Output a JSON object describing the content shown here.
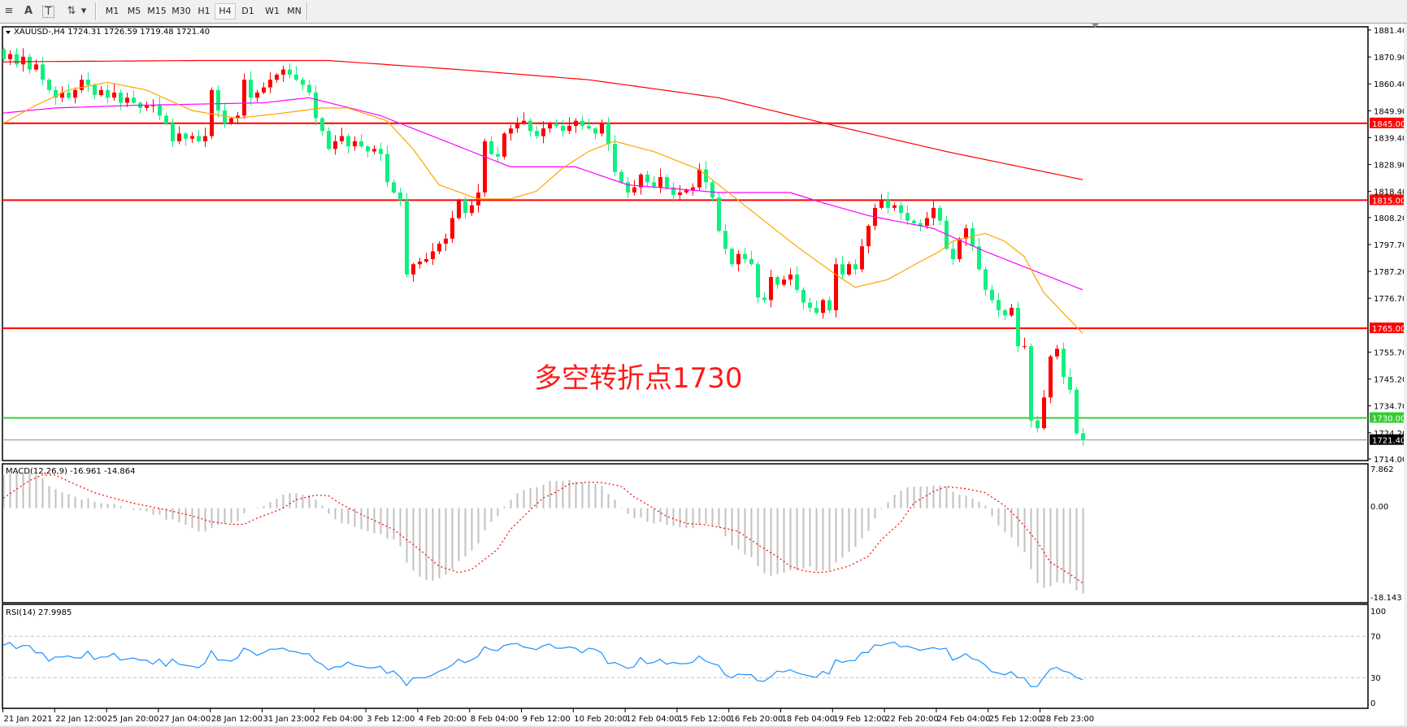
{
  "toolbar": {
    "tools": [
      {
        "name": "fibonacci-icon",
        "glyph": "≡"
      },
      {
        "name": "text-icon",
        "glyph": "A"
      },
      {
        "name": "text-label-icon",
        "glyph": "T"
      },
      {
        "name": "arrows-icon",
        "glyph": "⇅"
      },
      {
        "name": "dropdown-icon",
        "glyph": "▾"
      }
    ],
    "timeframes": [
      "M1",
      "M5",
      "M15",
      "M30",
      "H1",
      "H4",
      "D1",
      "W1",
      "MN"
    ],
    "active_timeframe": "H4"
  },
  "chart": {
    "header": "XAUUSD-,H4  1724.31 1726.59 1719.48 1721.40",
    "annotation": "多空转折点1730",
    "price_axis": [
      "1881.40",
      "1870.90",
      "1860.40",
      "1849.90",
      "1839.40",
      "1828.90",
      "1818.40",
      "1808.20",
      "1797.70",
      "1787.20",
      "1776.70",
      "1755.70",
      "1745.20",
      "1734.70",
      "1724.20",
      "1714.00"
    ],
    "time_axis": [
      "21 Jan 2021",
      "22 Jan 12:00",
      "25 Jan 20:00",
      "27 Jan 04:00",
      "28 Jan 12:00",
      "31 Jan 23:00",
      "2 Feb 04:00",
      "3 Feb 12:00",
      "4 Feb 20:00",
      "8 Feb 04:00",
      "9 Feb 12:00",
      "10 Feb 20:00",
      "12 Feb 04:00",
      "15 Feb 12:00",
      "16 Feb 20:00",
      "18 Feb 04:00",
      "19 Feb 12:00",
      "22 Feb 20:00",
      "24 Feb 04:00",
      "25 Feb 12:00",
      "28 Feb 23:00"
    ],
    "levels": [
      {
        "label": "1845.00",
        "value": 1845.0,
        "color": "#ff0000"
      },
      {
        "label": "1815.00",
        "value": 1815.0,
        "color": "#ff0000"
      },
      {
        "label": "1765.00",
        "value": 1765.0,
        "color": "#ff0000"
      },
      {
        "label": "1730.00",
        "value": 1730.0,
        "color": "#33cc33"
      },
      {
        "label": "1721.40",
        "value": 1721.4,
        "color": "#000000",
        "line_color": "#8090a0"
      }
    ],
    "colors": {
      "bull": "#ff0000",
      "bear": "#10f080",
      "ma_slow": "#ff0000",
      "ma_mid": "#ff00ff",
      "ma_fast": "#ffa500",
      "macd_hist": "#c0c0c0",
      "macd_signal": "#ff0000",
      "rsi": "#1e90ff"
    }
  },
  "chart_data": [
    {
      "type": "candlestick",
      "symbol": "XAUUSD-",
      "timeframe": "H4",
      "ylim": [
        1714.0,
        1881.4
      ],
      "first_open": 1874,
      "close": [
        1870,
        1872,
        1868,
        1871,
        1866,
        1868,
        1862,
        1858,
        1855,
        1857,
        1855,
        1858,
        1862,
        1860,
        1856,
        1858,
        1855,
        1857,
        1853,
        1855,
        1853,
        1851,
        1852,
        1852,
        1848,
        1845,
        1838,
        1841,
        1839,
        1840,
        1838,
        1840,
        1858,
        1850,
        1845,
        1847,
        1848,
        1862,
        1855,
        1857,
        1859,
        1862,
        1864,
        1866,
        1864,
        1862,
        1860,
        1857,
        1847,
        1842,
        1835,
        1838,
        1840,
        1836,
        1838,
        1836,
        1834,
        1835,
        1833,
        1822,
        1818,
        1815,
        1786,
        1790,
        1791,
        1792,
        1795,
        1798,
        1800,
        1808,
        1815,
        1810,
        1813,
        1818,
        1838,
        1833,
        1832,
        1841,
        1843,
        1845,
        1846,
        1842,
        1840,
        1843,
        1845,
        1844,
        1842,
        1844,
        1846,
        1844,
        1843,
        1841,
        1845,
        1837,
        1826,
        1822,
        1818,
        1820,
        1825,
        1822,
        1820,
        1824,
        1820,
        1817,
        1818,
        1819,
        1820,
        1827,
        1822,
        1816,
        1803,
        1796,
        1790,
        1794,
        1792,
        1790,
        1777,
        1776,
        1785,
        1782,
        1784,
        1786,
        1780,
        1775,
        1773,
        1771,
        1776,
        1772,
        1790,
        1786,
        1790,
        1788,
        1797,
        1805,
        1812,
        1815,
        1812,
        1813,
        1810,
        1807,
        1806,
        1805,
        1808,
        1812,
        1807,
        1796,
        1792,
        1800,
        1804,
        1797,
        1788,
        1780,
        1776,
        1772,
        1770,
        1773,
        1758,
        1758,
        1729,
        1726,
        1738,
        1754,
        1757,
        1746,
        1741,
        1724,
        1721.4
      ],
      "moving_averages": [
        {
          "color": "#ff0000",
          "points": [
            [
              0,
              1869
            ],
            [
              30,
              1869.5
            ],
            [
              50,
              1869.5
            ],
            [
              70,
              1866
            ],
            [
              90,
              1862
            ],
            [
              110,
              1855
            ],
            [
              128,
              1844
            ],
            [
              145,
              1834
            ],
            [
              166,
              1823
            ]
          ]
        },
        {
          "color": "#ff00ff",
          "points": [
            [
              0,
              1849
            ],
            [
              8,
              1851
            ],
            [
              20,
              1852
            ],
            [
              40,
              1853
            ],
            [
              47,
              1855
            ],
            [
              58,
              1848
            ],
            [
              69,
              1837
            ],
            [
              78,
              1828
            ],
            [
              88,
              1828
            ],
            [
              96,
              1821
            ],
            [
              110,
              1818
            ],
            [
              121,
              1818
            ],
            [
              126,
              1814
            ],
            [
              133,
              1809
            ],
            [
              143,
              1804
            ],
            [
              151,
              1795
            ],
            [
              166,
              1780
            ]
          ]
        },
        {
          "color": "#ffa500",
          "points": [
            [
              0,
              1845
            ],
            [
              5,
              1852
            ],
            [
              10,
              1858
            ],
            [
              16,
              1861
            ],
            [
              22,
              1858
            ],
            [
              29,
              1850
            ],
            [
              36,
              1847
            ],
            [
              43,
              1849
            ],
            [
              49,
              1851
            ],
            [
              53,
              1851
            ],
            [
              59,
              1846
            ],
            [
              63,
              1835
            ],
            [
              67,
              1821
            ],
            [
              73,
              1815.5
            ],
            [
              78,
              1815.5
            ],
            [
              82,
              1818.5
            ],
            [
              86,
              1827.5
            ],
            [
              90,
              1834
            ],
            [
              94,
              1838
            ],
            [
              100,
              1834
            ],
            [
              107,
              1827
            ],
            [
              113,
              1815
            ],
            [
              122,
              1797
            ],
            [
              128,
              1786
            ],
            [
              131,
              1781
            ],
            [
              136,
              1784
            ],
            [
              141,
              1791
            ],
            [
              144,
              1795
            ],
            [
              146,
              1799
            ],
            [
              151,
              1802
            ],
            [
              154,
              1799
            ],
            [
              157,
              1793
            ],
            [
              160,
              1779
            ],
            [
              166,
              1763
            ]
          ]
        }
      ]
    },
    {
      "type": "bar",
      "title": "MACD(12,26,9) -16.961 -14.864",
      "ylim": [
        -18.143,
        7.862
      ],
      "ticks": [
        "7.862",
        "0.00",
        "-18.143"
      ],
      "macd": [
        6.6,
        6.8,
        7.1,
        6.9,
        7.1,
        6.7,
        6.0,
        4.4,
        3.8,
        3.2,
        2.8,
        2.3,
        1.7,
        2.0,
        1.3,
        1.0,
        0.9,
        0.9,
        0.4,
        0.0,
        -0.3,
        -0.4,
        -0.6,
        -1.3,
        -1.3,
        -2.3,
        -2.2,
        -2.8,
        -3.3,
        -3.9,
        -4.6,
        -4.6,
        -3.9,
        -3.3,
        -3.0,
        -3.0,
        -2.6,
        -1.0,
        0.0,
        0.1,
        0.4,
        1.2,
        1.9,
        2.7,
        3.0,
        3.0,
        2.7,
        2.6,
        1.7,
        0.5,
        -1.1,
        -2.2,
        -3.0,
        -3.1,
        -3.7,
        -4.2,
        -4.6,
        -5.0,
        -5.1,
        -6.0,
        -6.2,
        -7.6,
        -10.8,
        -12.4,
        -13.6,
        -14.3,
        -14.4,
        -13.9,
        -13.2,
        -12.2,
        -10.5,
        -9.6,
        -8.4,
        -7.0,
        -4.4,
        -2.7,
        -1.5,
        0.3,
        1.7,
        3.0,
        3.6,
        4.0,
        4.2,
        4.7,
        5.4,
        5.4,
        5.4,
        5.6,
        5.3,
        5.1,
        5.0,
        4.8,
        4.4,
        2.8,
        1.7,
        0.1,
        -1.1,
        -2.0,
        -1.8,
        -2.7,
        -3.0,
        -2.7,
        -3.3,
        -3.5,
        -3.8,
        -3.9,
        -3.9,
        -3.3,
        -3.1,
        -3.5,
        -3.8,
        -5.6,
        -7.4,
        -8.2,
        -9.2,
        -9.7,
        -11.5,
        -12.9,
        -13.4,
        -13.1,
        -12.8,
        -12.3,
        -12.3,
        -12.0,
        -11.6,
        -12.5,
        -12.4,
        -12.4,
        -10.8,
        -9.8,
        -8.7,
        -7.7,
        -6.0,
        -4.5,
        -2.0,
        -0.15,
        1.2,
        2.7,
        3.5,
        4.2,
        4.3,
        4.3,
        4.3,
        4.5,
        4.5,
        4.3,
        3.3,
        2.7,
        2.5,
        1.9,
        1.3,
        0.5,
        -1.6,
        -3.4,
        -4.8,
        -5.8,
        -7.6,
        -8.7,
        -12.1,
        -14.9,
        -15.8,
        -15.5,
        -14.7,
        -14.9,
        -15.0,
        -16.3,
        -16.961
      ],
      "signal_points": [
        [
          0,
          2.0
        ],
        [
          4,
          5.5
        ],
        [
          6,
          6.6
        ],
        [
          8,
          6.6
        ],
        [
          11,
          4.8
        ],
        [
          14,
          3.1
        ],
        [
          17,
          2.0
        ],
        [
          20,
          1.0
        ],
        [
          25,
          -0.3
        ],
        [
          29,
          -1.5
        ],
        [
          32,
          -2.7
        ],
        [
          35,
          -3.2
        ],
        [
          37,
          -3.2
        ],
        [
          39,
          -2.0
        ],
        [
          43,
          0
        ],
        [
          45,
          1.7
        ],
        [
          48,
          2.6
        ],
        [
          50,
          2.5
        ],
        [
          52,
          0.8
        ],
        [
          55,
          -1.2
        ],
        [
          57,
          -2.4
        ],
        [
          60,
          -4.2
        ],
        [
          64,
          -8.2
        ],
        [
          67,
          -11.5
        ],
        [
          70,
          -12.8
        ],
        [
          72,
          -12.2
        ],
        [
          76,
          -8.2
        ],
        [
          78,
          -4.2
        ],
        [
          81,
          -0.4
        ],
        [
          83,
          2.0
        ],
        [
          85,
          3.2
        ],
        [
          87,
          4.8
        ],
        [
          90,
          5.2
        ],
        [
          92,
          5.1
        ],
        [
          95,
          4.4
        ],
        [
          97,
          2.3
        ],
        [
          100,
          0
        ],
        [
          102,
          -1.6
        ],
        [
          105,
          -3.0
        ],
        [
          108,
          -3.3
        ],
        [
          111,
          -4.0
        ],
        [
          113,
          -4.6
        ],
        [
          116,
          -7.2
        ],
        [
          119,
          -9.6
        ],
        [
          121,
          -11.5
        ],
        [
          123,
          -12.4
        ],
        [
          125,
          -12.8
        ],
        [
          127,
          -12.6
        ],
        [
          130,
          -11.5
        ],
        [
          133,
          -9.6
        ],
        [
          135,
          -6.3
        ],
        [
          138,
          -2.8
        ],
        [
          140,
          1.0
        ],
        [
          143,
          3.3
        ],
        [
          145,
          4.3
        ],
        [
          148,
          3.9
        ],
        [
          151,
          3.1
        ],
        [
          154,
          0.5
        ],
        [
          156,
          -2.0
        ],
        [
          159,
          -6.6
        ],
        [
          161,
          -10.7
        ],
        [
          164,
          -13.1
        ],
        [
          166,
          -14.864
        ]
      ]
    },
    {
      "type": "line",
      "title": "RSI(14) 27.9985",
      "ylim": [
        0,
        100
      ],
      "ticks": [
        "100",
        "70",
        "30",
        "0"
      ],
      "levels": [
        70,
        30
      ],
      "values": [
        61.3,
        64,
        58,
        61,
        61,
        54,
        54,
        46,
        50,
        50,
        51,
        49,
        49,
        55.5,
        47.5,
        50,
        50,
        53.5,
        47,
        48,
        49,
        47,
        47,
        43,
        48,
        41,
        48,
        43,
        42,
        41,
        39.5,
        44,
        56,
        47,
        47,
        46,
        49,
        58.5,
        56,
        51.5,
        54,
        57.5,
        57.5,
        58.5,
        55.6,
        55,
        53,
        53,
        46,
        43,
        37.4,
        40.5,
        40.5,
        45,
        42,
        41,
        39.5,
        39.5,
        41,
        34,
        36.5,
        31,
        22.4,
        29.7,
        30,
        30,
        32.6,
        36,
        38.5,
        42,
        47.8,
        44.5,
        47,
        50.6,
        59.7,
        57,
        56,
        61,
        62.4,
        63,
        59.6,
        58.4,
        57,
        60.7,
        62.4,
        58.4,
        58.4,
        59.7,
        58.4,
        54,
        58.4,
        57.4,
        54,
        43.5,
        44.7,
        42,
        39,
        40.5,
        49.5,
        43.5,
        44.7,
        47.8,
        43,
        44.7,
        43.5,
        43.5,
        44.7,
        51,
        46,
        43.7,
        42,
        32.9,
        29.7,
        33.6,
        32.9,
        33,
        27,
        26.4,
        30.8,
        36.3,
        35.5,
        37.6,
        34.8,
        33,
        31.6,
        30.3,
        36,
        33.6,
        47.3,
        44.7,
        46.4,
        46.4,
        54.2,
        54.2,
        61.6,
        61,
        63,
        64.3,
        59.8,
        60.4,
        58.5,
        56.4,
        57.7,
        59,
        57.4,
        58.4,
        46.9,
        49.5,
        53.2,
        48.3,
        46.7,
        42.3,
        35.8,
        34.5,
        32.7,
        35.8,
        30,
        30,
        21.4,
        21.4,
        30.3,
        38,
        39.9,
        36.3,
        35,
        30.3,
        27.9985
      ]
    }
  ]
}
